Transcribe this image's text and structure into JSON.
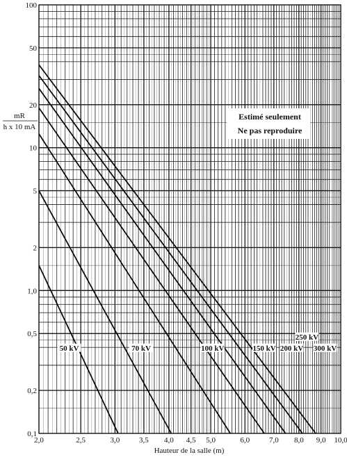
{
  "chart_data": {
    "type": "line",
    "title": "",
    "xlabel": "Hauteur de la salle (m)",
    "ylabel_top": "mR",
    "ylabel_bottom": "h x 10 mA",
    "x_scale": "log",
    "y_scale": "log",
    "xlim": [
      2.0,
      10.0
    ],
    "ylim": [
      0.1,
      100
    ],
    "x_ticks": [
      {
        "value": 2.0,
        "label": "2,0"
      },
      {
        "value": 2.5,
        "label": "2,5"
      },
      {
        "value": 3.0,
        "label": "3,0"
      },
      {
        "value": 3.5,
        "label": "3,5"
      },
      {
        "value": 4.0,
        "label": "4,0"
      },
      {
        "value": 4.5,
        "label": "4,5"
      },
      {
        "value": 5.0,
        "label": "5,0"
      },
      {
        "value": 6.0,
        "label": "6,0"
      },
      {
        "value": 7.0,
        "label": "7,0"
      },
      {
        "value": 8.0,
        "label": "8,0"
      },
      {
        "value": 9.0,
        "label": "9,0"
      },
      {
        "value": 10.0,
        "label": "10,0"
      }
    ],
    "y_ticks": [
      {
        "value": 0.1,
        "label": "0,1"
      },
      {
        "value": 0.2,
        "label": "0,2"
      },
      {
        "value": 0.5,
        "label": "0,5"
      },
      {
        "value": 1.0,
        "label": "1,0"
      },
      {
        "value": 2,
        "label": "2"
      },
      {
        "value": 5,
        "label": "5"
      },
      {
        "value": 10,
        "label": "10"
      },
      {
        "value": 20,
        "label": "20"
      },
      {
        "value": 50,
        "label": "50"
      },
      {
        "value": 100,
        "label": "100"
      }
    ],
    "grid": true,
    "annotations": [
      "Estimé seulement",
      "Ne pas reproduire"
    ],
    "series": [
      {
        "name": "50 kV",
        "x": [
          2.0,
          3.05
        ],
        "y": [
          1.5,
          0.1
        ]
      },
      {
        "name": "70 kV",
        "x": [
          2.0,
          4.05
        ],
        "y": [
          5.0,
          0.1
        ]
      },
      {
        "name": "100 kV",
        "x": [
          2.0,
          5.55
        ],
        "y": [
          12.5,
          0.1
        ]
      },
      {
        "name": "150 kV",
        "x": [
          2.0,
          6.65
        ],
        "y": [
          19.0,
          0.1
        ]
      },
      {
        "name": "200 kV",
        "x": [
          2.0,
          7.45
        ],
        "y": [
          26.0,
          0.1
        ]
      },
      {
        "name": "250 kV",
        "x": [
          2.0,
          8.15
        ],
        "y": [
          32.0,
          0.1
        ]
      },
      {
        "name": "300 kV",
        "x": [
          2.0,
          8.75
        ],
        "y": [
          38.0,
          0.1
        ]
      }
    ]
  }
}
